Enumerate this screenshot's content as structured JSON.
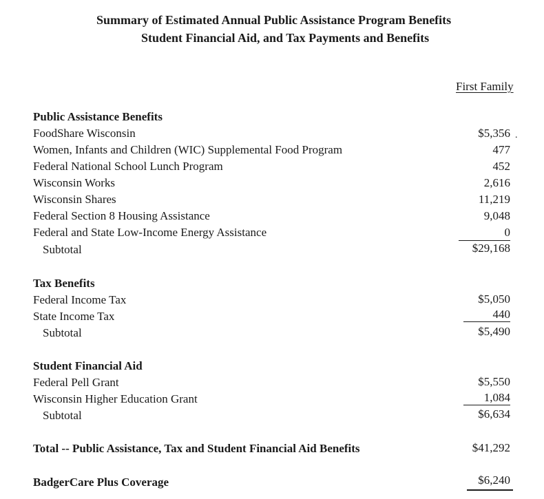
{
  "title_line1": "Summary of Estimated Annual Public Assistance Program Benefits",
  "title_line2": "Student Financial Aid, and Tax Payments and Benefits",
  "column_header": "First Family",
  "sections": {
    "public_assistance": {
      "heading": "Public Assistance Benefits",
      "rows": [
        {
          "label": "FoodShare Wisconsin",
          "amount": "$5,356"
        },
        {
          "label": "Women, Infants and Children (WIC) Supplemental Food Program",
          "amount": "477"
        },
        {
          "label": "Federal National School Lunch Program",
          "amount": "452"
        },
        {
          "label": "Wisconsin Works",
          "amount": "2,616"
        },
        {
          "label": "Wisconsin Shares",
          "amount": "11,219"
        },
        {
          "label": "Federal Section 8 Housing Assistance",
          "amount": "9,048"
        },
        {
          "label": "Federal and State Low-Income Energy Assistance",
          "amount": "0"
        }
      ],
      "subtotal_label": "Subtotal",
      "subtotal_amount": "$29,168"
    },
    "tax_benefits": {
      "heading": "Tax Benefits",
      "rows": [
        {
          "label": "Federal Income Tax",
          "amount": "$5,050"
        },
        {
          "label": "State Income Tax",
          "amount": "440"
        }
      ],
      "subtotal_label": "Subtotal",
      "subtotal_amount": "$5,490"
    },
    "student_aid": {
      "heading": "Student Financial Aid",
      "rows": [
        {
          "label": "Federal Pell Grant",
          "amount": "$5,550"
        },
        {
          "label": "Wisconsin Higher Education Grant",
          "amount": "1,084"
        }
      ],
      "subtotal_label": "Subtotal",
      "subtotal_amount": "$6,634"
    }
  },
  "total": {
    "label": "Total -- Public Assistance, Tax and Student Financial Aid Benefits",
    "amount": "$41,292"
  },
  "badgercare": {
    "label": "BadgerCare Plus Coverage",
    "amount": "$6,240"
  }
}
